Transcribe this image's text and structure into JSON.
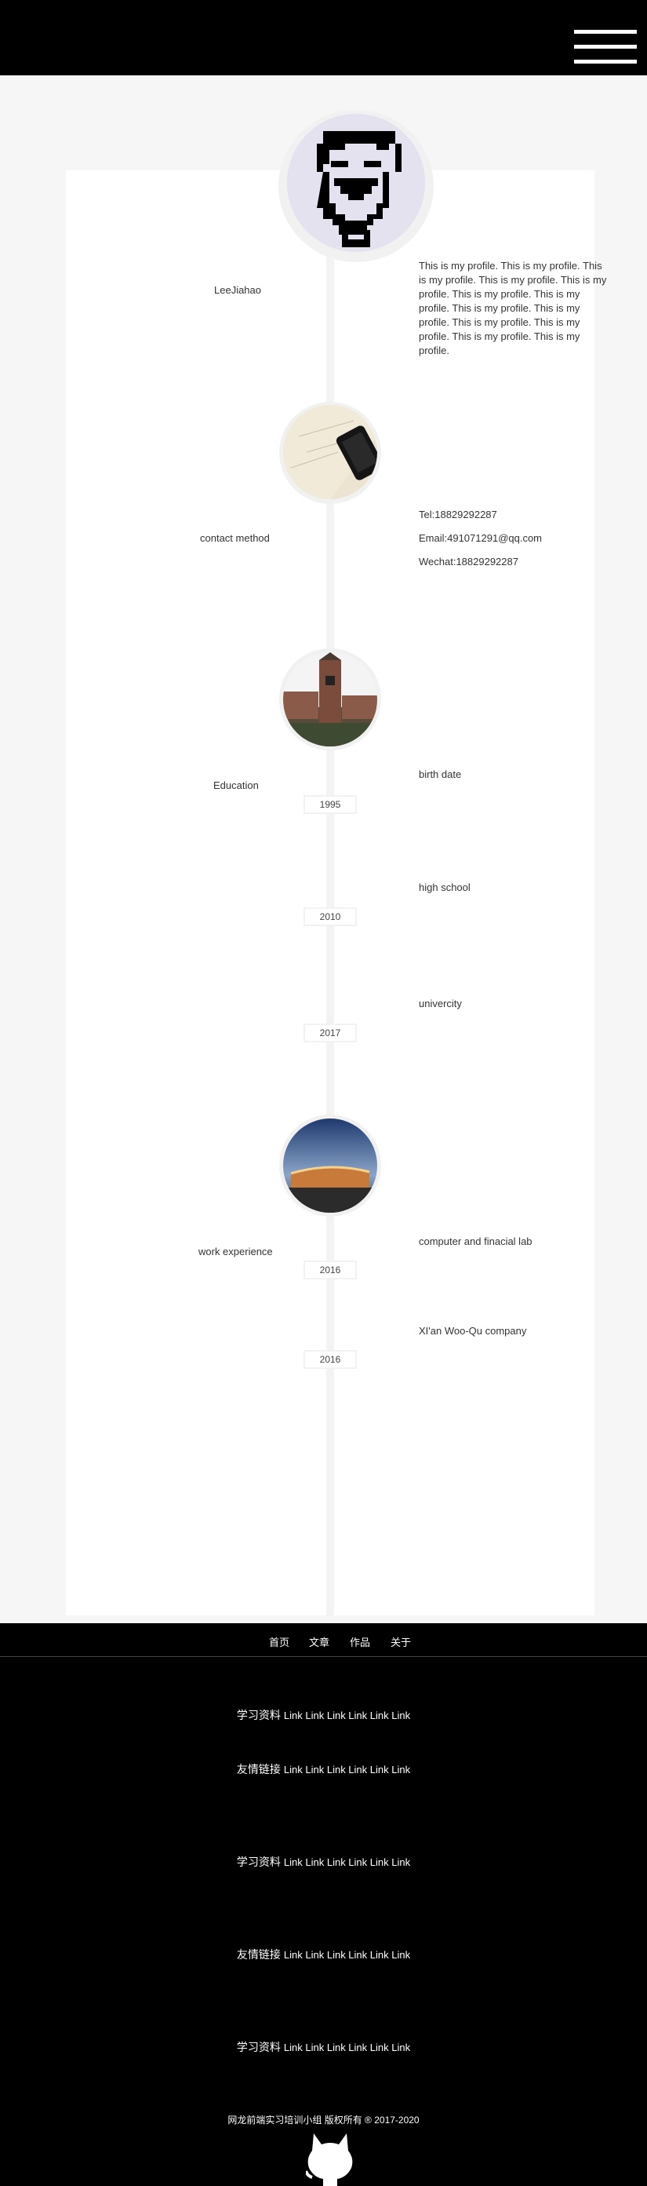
{
  "header": {
    "menu_icon": "hamburger-menu-icon"
  },
  "profile": {
    "name": "LeeJiahao",
    "bio": "This is my profile. This is my profile. This is my profile. This is my profile. This is my profile. This is my profile. This is my profile. This is my profile. This is my profile. This is my profile. This is my profile. This is my profile. This is my profile.",
    "avatar_icon": "pixel-avatar-icon"
  },
  "contact": {
    "title": "contact method",
    "tel": "Tel:18829292287",
    "email": "Email:491071291@qq.com",
    "wechat": "Wechat:18829292287"
  },
  "education": {
    "title": "Education",
    "items": [
      {
        "label": "birth date",
        "year": "1995"
      },
      {
        "label": "high school",
        "year": "2010"
      },
      {
        "label": "univercity",
        "year": "2017"
      }
    ]
  },
  "work": {
    "title": "work experience",
    "items": [
      {
        "label": "computer and finacial lab",
        "year": "2016"
      },
      {
        "label": "XI'an Woo-Qu company",
        "year": "2016"
      }
    ]
  },
  "footer": {
    "nav": [
      "首页",
      "文章",
      "作品",
      "关于"
    ],
    "rows": [
      {
        "lead": "学习资料",
        "links": "Link Link Link Link Link Link"
      },
      {
        "lead": "友情链接",
        "links": "Link Link Link Link Link Link"
      },
      {
        "lead": "学习资料",
        "links": "Link Link Link Link Link Link"
      },
      {
        "lead": "友情链接",
        "links": "Link Link Link Link Link Link"
      },
      {
        "lead": "学习资料",
        "links": "Link Link Link Link Link Link"
      }
    ],
    "copyright": "网龙前端实习培训小组 版权所有 ® 2017-2020",
    "logo_icon": "github-octocat-icon"
  },
  "colors": {
    "page_bg": "#f6f6f6",
    "panel": "#ffffff",
    "dark": "#000000",
    "line": "#f3f3f3"
  }
}
